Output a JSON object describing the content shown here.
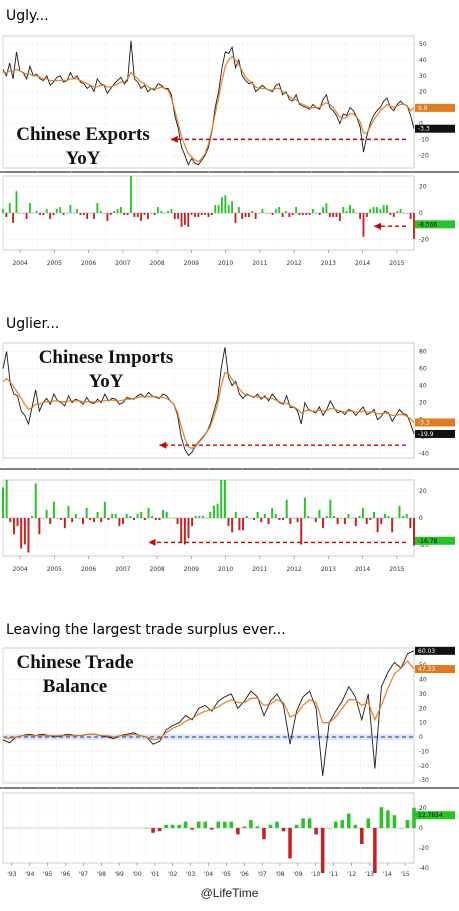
{
  "captions": [
    "Ugly...",
    "Uglier...",
    "Leaving the largest trade surplus ever..."
  ],
  "footer": "@LifeTime",
  "colors": {
    "primary_line": "#1a1a1a",
    "smooth_line": "#e07b20",
    "pos_bar": "#27c427",
    "neg_bar": "#c62020",
    "arrow": "#cc0000",
    "zero_line": "#2030a0"
  },
  "chart_data": [
    {
      "type": "line",
      "title": "Chinese Exports YoY",
      "x_ticks": [
        "2004",
        "2005",
        "2006",
        "2007",
        "2008",
        "2009",
        "2010",
        "2011",
        "2012",
        "2013",
        "2014",
        "2015"
      ],
      "y_ticks_top": [
        50,
        40,
        30,
        20,
        10,
        0,
        -10,
        -20
      ],
      "y_ticks_bottom": [
        20,
        0,
        -20
      ],
      "tags": [
        "9.8",
        "-3.3",
        "-8.566"
      ],
      "series": [
        {
          "values": [
            34,
            30,
            38,
            28,
            45,
            33,
            32,
            28,
            36,
            30,
            31,
            28,
            27,
            30,
            24,
            26,
            29,
            30,
            26,
            27,
            32,
            28,
            30,
            26,
            25,
            22,
            24,
            20,
            28,
            25,
            24,
            19,
            22,
            25,
            27,
            29,
            25,
            27,
            52,
            28,
            26,
            22,
            24,
            20,
            22,
            21,
            25,
            24,
            22,
            22,
            18,
            5,
            -3,
            -15,
            -20,
            -26,
            -22,
            -25,
            -26,
            -23,
            -20,
            -15,
            -5,
            10,
            20,
            35,
            45,
            44,
            48,
            35,
            40,
            30,
            27,
            25,
            26,
            20,
            22,
            24,
            22,
            21,
            20,
            24,
            25,
            18,
            20,
            15,
            14,
            18,
            12,
            11,
            10,
            9,
            12,
            10,
            9,
            15,
            18,
            10,
            8,
            5,
            0,
            6,
            5,
            10,
            8,
            4,
            -2,
            -18,
            -8,
            0,
            5,
            8,
            10,
            14,
            16,
            10,
            8,
            12,
            14,
            12,
            11,
            5,
            -3.3
          ]
        },
        {
          "values": [
            32,
            32,
            33,
            33,
            34,
            33,
            32,
            31,
            31,
            30,
            30,
            29,
            28,
            28,
            27,
            27,
            27,
            27,
            27,
            27,
            28,
            28,
            28,
            27,
            26,
            25,
            24,
            23,
            23,
            24,
            24,
            23,
            23,
            24,
            25,
            26,
            26,
            28,
            32,
            30,
            28,
            26,
            25,
            23,
            22,
            22,
            22,
            23,
            22,
            21,
            16,
            8,
            0,
            -8,
            -14,
            -19,
            -21,
            -23,
            -24,
            -22,
            -19,
            -13,
            -4,
            6,
            16,
            27,
            36,
            40,
            42,
            40,
            37,
            33,
            29,
            27,
            25,
            23,
            22,
            22,
            22,
            21,
            21,
            22,
            22,
            20,
            19,
            17,
            15,
            15,
            13,
            12,
            11,
            10,
            10,
            10,
            10,
            12,
            13,
            12,
            10,
            7,
            4,
            3,
            4,
            6,
            6,
            4,
            1,
            -6,
            -6,
            -2,
            2,
            5,
            8,
            10,
            12,
            11,
            10,
            11,
            12,
            12,
            11,
            8,
            9.8
          ]
        }
      ]
    },
    {
      "type": "line",
      "title": "Chinese Imports YoY",
      "x_ticks": [
        "2004",
        "2005",
        "2006",
        "2007",
        "2008",
        "2009",
        "2010",
        "2011",
        "2012",
        "2013",
        "2014",
        "2015"
      ],
      "y_ticks_top": [
        80,
        60,
        40,
        20,
        0,
        -20,
        -40
      ],
      "y_ticks_bottom": [
        20,
        0,
        -20
      ],
      "tags": [
        "-3.3",
        "-19.9",
        "-16.78"
      ],
      "series": [
        {
          "values": [
            60,
            80,
            42,
            30,
            28,
            10,
            5,
            -5,
            15,
            35,
            10,
            20,
            25,
            18,
            30,
            22,
            20,
            16,
            28,
            20,
            24,
            22,
            18,
            26,
            20,
            19,
            24,
            20,
            30,
            22,
            25,
            24,
            18,
            20,
            26,
            25,
            24,
            28,
            30,
            26,
            32,
            28,
            26,
            25,
            30,
            28,
            22,
            18,
            5,
            -20,
            -35,
            -42,
            -38,
            -30,
            -25,
            -20,
            -15,
            -5,
            10,
            25,
            60,
            85,
            50,
            40,
            45,
            30,
            25,
            30,
            28,
            26,
            30,
            24,
            28,
            22,
            30,
            25,
            20,
            18,
            28,
            14,
            15,
            10,
            -5,
            20,
            12,
            10,
            8,
            15,
            5,
            12,
            22,
            14,
            8,
            10,
            6,
            12,
            10,
            5,
            10,
            15,
            6,
            8,
            12,
            0,
            4,
            10,
            8,
            -2,
            5,
            12,
            7,
            6,
            -4,
            -16.78
          ]
        },
        {
          "values": [
            45,
            48,
            44,
            38,
            32,
            25,
            18,
            12,
            14,
            18,
            18,
            20,
            21,
            21,
            22,
            22,
            21,
            21,
            22,
            22,
            22,
            22,
            21,
            21,
            21,
            21,
            21,
            22,
            22,
            23,
            23,
            22,
            22,
            23,
            24,
            24,
            25,
            26,
            27,
            27,
            27,
            27,
            27,
            26,
            26,
            25,
            22,
            18,
            8,
            -8,
            -22,
            -32,
            -34,
            -31,
            -26,
            -21,
            -15,
            -8,
            4,
            18,
            40,
            55,
            54,
            47,
            42,
            36,
            31,
            29,
            28,
            27,
            27,
            26,
            26,
            25,
            25,
            23,
            21,
            19,
            19,
            17,
            15,
            12,
            8,
            10,
            11,
            10,
            10,
            11,
            10,
            11,
            13,
            13,
            11,
            10,
            9,
            10,
            10,
            9,
            9,
            10,
            9,
            9,
            9,
            7,
            7,
            8,
            7,
            5,
            5,
            6,
            6,
            4,
            1,
            -3.3
          ]
        }
      ]
    },
    {
      "type": "line",
      "title": "Chinese Trade Balance",
      "x_ticks": [
        "'93",
        "'94",
        "'95",
        "'96",
        "'97",
        "'98",
        "'99",
        "'00",
        "'01",
        "'02",
        "'03",
        "'04",
        "'05",
        "'06",
        "'07",
        "'08",
        "'09",
        "'10",
        "'11",
        "'12",
        "'13",
        "'14",
        "'15"
      ],
      "y_ticks_top": [
        60,
        50,
        40,
        30,
        20,
        10,
        0,
        -10,
        -20,
        -30
      ],
      "y_ticks_bottom": [
        20,
        0,
        -20,
        -40
      ],
      "tags": [
        "60.03",
        "47.33",
        "12.7654"
      ],
      "series": [
        {
          "values": [
            -2,
            -4,
            0,
            1,
            2,
            1,
            2,
            1,
            0,
            1,
            2,
            1,
            1,
            2,
            2,
            1,
            0,
            -1,
            1,
            2,
            3,
            1,
            0,
            -5,
            -3,
            5,
            8,
            10,
            15,
            12,
            20,
            22,
            18,
            25,
            28,
            30,
            20,
            25,
            32,
            28,
            15,
            25,
            30,
            22,
            -5,
            18,
            28,
            32,
            20,
            -27,
            10,
            18,
            25,
            35,
            28,
            12,
            30,
            -22,
            35,
            45,
            52,
            48,
            58,
            60.03
          ]
        },
        {
          "values": [
            0,
            -1,
            0,
            1,
            1,
            1,
            1,
            1,
            1,
            1,
            1,
            1,
            1,
            2,
            2,
            1,
            1,
            0,
            1,
            1,
            2,
            1,
            0,
            -2,
            -1,
            3,
            6,
            8,
            11,
            13,
            16,
            18,
            19,
            21,
            24,
            26,
            24,
            24,
            27,
            27,
            22,
            23,
            26,
            24,
            14,
            16,
            22,
            26,
            24,
            10,
            10,
            14,
            20,
            26,
            26,
            22,
            24,
            12,
            22,
            34,
            44,
            48,
            53,
            47.33
          ]
        }
      ]
    }
  ]
}
